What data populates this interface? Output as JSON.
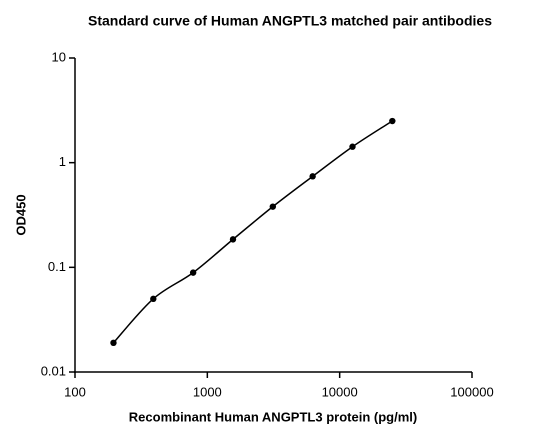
{
  "chart_data": {
    "type": "scatter",
    "title": "Standard curve of Human ANGPTL3 matched pair antibodies",
    "xlabel": "Recombinant Human ANGPTL3 protein (pg/ml)",
    "ylabel": "OD450",
    "x": [
      195.3125,
      390.625,
      781.25,
      1562.5,
      3125,
      6250,
      12500,
      25000
    ],
    "values": [
      0.019,
      0.05,
      0.089,
      0.185,
      0.38,
      0.74,
      1.42,
      2.5
    ],
    "color": "#000000",
    "xscale": "log",
    "yscale": "log",
    "xlim": [
      100,
      100000
    ],
    "xticks": [
      100,
      1000,
      10000,
      100000
    ],
    "ylim": [
      0.01,
      10
    ],
    "yticks": [
      0.01,
      0.1,
      1,
      10
    ]
  }
}
